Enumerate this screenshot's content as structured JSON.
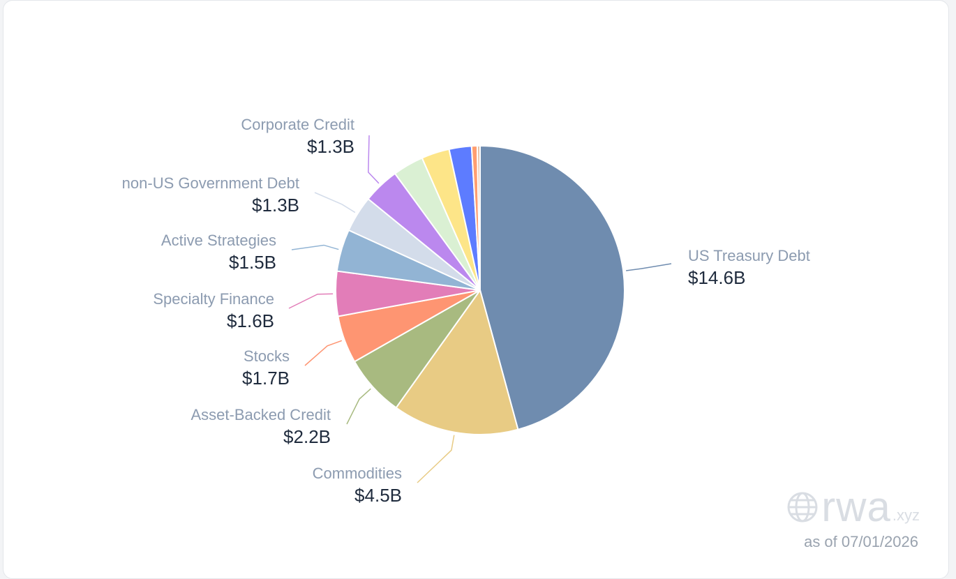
{
  "chart_data": {
    "type": "pie",
    "unit": "$B",
    "slices": [
      {
        "name": "US Treasury Debt",
        "value": 14.6,
        "label": "$14.6B",
        "color": "#6f8caf"
      },
      {
        "name": "Commodities",
        "value": 4.5,
        "label": "$4.5B",
        "color": "#e8cb84"
      },
      {
        "name": "Asset-Backed Credit",
        "value": 2.2,
        "label": "$2.2B",
        "color": "#a8ba80"
      },
      {
        "name": "Stocks",
        "value": 1.7,
        "label": "$1.7B",
        "color": "#fe9572"
      },
      {
        "name": "Specialty Finance",
        "value": 1.6,
        "label": "$1.6B",
        "color": "#e27db8"
      },
      {
        "name": "Active Strategies",
        "value": 1.5,
        "label": "$1.5B",
        "color": "#92b4d4"
      },
      {
        "name": "non-US Government Debt",
        "value": 1.3,
        "label": "$1.3B",
        "color": "#d3dcea"
      },
      {
        "name": "Corporate Credit",
        "value": 1.3,
        "label": "$1.3B",
        "color": "#bb88ee"
      },
      {
        "name": "",
        "value": 1.1,
        "label": "",
        "color": "#daf0d3"
      },
      {
        "name": "",
        "value": 1.0,
        "label": "",
        "color": "#fde588"
      },
      {
        "name": "",
        "value": 0.8,
        "label": "",
        "color": "#5d7cff"
      },
      {
        "name": "",
        "value": 0.2,
        "label": "",
        "color": "#ff9e70"
      },
      {
        "name": "",
        "value": 0.1,
        "label": "",
        "color": "#e7c1a5"
      }
    ]
  },
  "watermark": {
    "brand": "rwa",
    "tld": ".xyz",
    "logo_icon": "globe-icon"
  },
  "footer": {
    "as_of": "as of 07/01/2026"
  }
}
